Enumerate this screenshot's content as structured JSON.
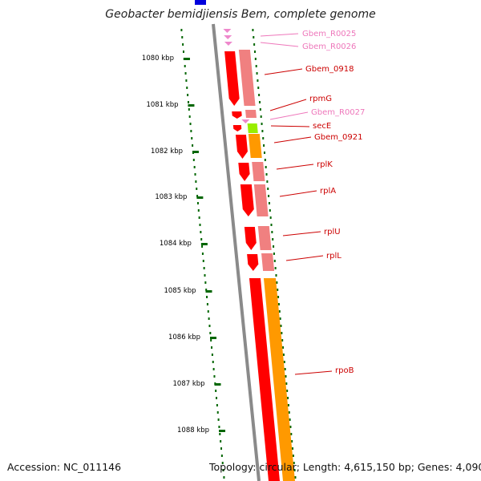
{
  "title": "Geobacter bemidjiensis Bem, complete genome",
  "footer": {
    "accession": "Accession: NC_011146",
    "summary": "Topology: circular; Length: 4,615,150 bp; Genes: 4,090"
  },
  "kbp_labels": [
    "1080 kbp",
    "1081 kbp",
    "1082 kbp",
    "1083 kbp",
    "1084 kbp",
    "1085 kbp",
    "1086 kbp",
    "1087 kbp",
    "1088 kbp"
  ],
  "genes": [
    {
      "label": "Gbem_R0025",
      "kind": "rna"
    },
    {
      "label": "Gbem_R0026",
      "kind": "rna"
    },
    {
      "label": "Gbem_0918",
      "kind": "cds"
    },
    {
      "label": "rpmG",
      "kind": "cds"
    },
    {
      "label": "Gbem_R0027",
      "kind": "rna"
    },
    {
      "label": "secE",
      "kind": "cds"
    },
    {
      "label": "Gbem_0921",
      "kind": "cds"
    },
    {
      "label": "rplK",
      "kind": "cds"
    },
    {
      "label": "rplA",
      "kind": "cds"
    },
    {
      "label": "rplU",
      "kind": "cds"
    },
    {
      "label": "rplL",
      "kind": "cds"
    },
    {
      "label": "rpoB",
      "kind": "cds"
    }
  ],
  "colors": {
    "cds_label": "#cc0000",
    "rna_label": "#ee77bb",
    "gene_red": "#ff0000",
    "gene_pink": "#f08080",
    "gene_orange": "#ff9900",
    "gene_lime": "#99ee00",
    "rna_pink": "#ee88cc",
    "backbone": "#8a8a8a",
    "gc_dots": "#006600",
    "blue_feature": "#0000dd"
  }
}
